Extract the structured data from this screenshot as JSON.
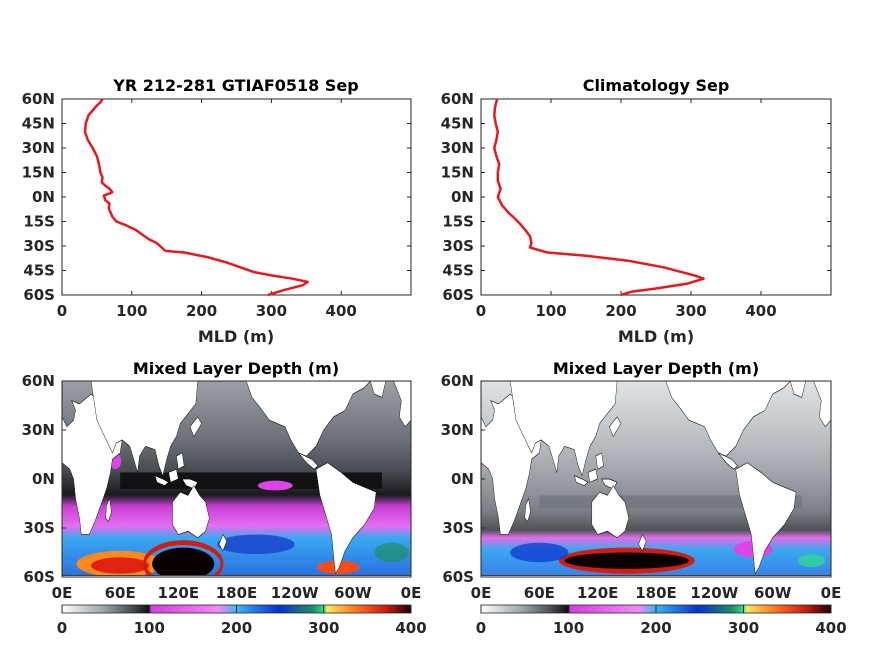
{
  "chart_data": [
    {
      "type": "line",
      "title": "YR 212-281 GTIAF0518 Sep",
      "xlabel": "MLD (m)",
      "ylabel": "",
      "xlim": [
        0,
        500
      ],
      "ylim": [
        -60,
        60
      ],
      "x_ticks": [
        "0",
        "100",
        "200",
        "300",
        "400"
      ],
      "y_ticks": [
        "60N",
        "45N",
        "30N",
        "15N",
        "0N",
        "15S",
        "30S",
        "45S",
        "60S"
      ],
      "series": [
        {
          "color": "#e8191c",
          "points": [
            [
              58,
              60
            ],
            [
              55,
              58
            ],
            [
              50,
              56
            ],
            [
              44,
              53
            ],
            [
              38,
              50
            ],
            [
              34,
              45
            ],
            [
              33,
              40
            ],
            [
              37,
              35
            ],
            [
              44,
              30
            ],
            [
              50,
              25
            ],
            [
              53,
              20
            ],
            [
              55,
              15
            ],
            [
              58,
              12
            ],
            [
              57,
              9
            ],
            [
              62,
              7
            ],
            [
              68,
              5
            ],
            [
              72,
              3
            ],
            [
              67,
              2
            ],
            [
              60,
              1
            ],
            [
              62,
              -2
            ],
            [
              68,
              -4
            ],
            [
              67,
              -7
            ],
            [
              69,
              -9
            ],
            [
              72,
              -12
            ],
            [
              78,
              -15
            ],
            [
              90,
              -17
            ],
            [
              105,
              -20
            ],
            [
              115,
              -23
            ],
            [
              125,
              -26
            ],
            [
              135,
              -28
            ],
            [
              143,
              -31
            ],
            [
              148,
              -33
            ],
            [
              175,
              -34
            ],
            [
              210,
              -37
            ],
            [
              235,
              -40
            ],
            [
              255,
              -43
            ],
            [
              275,
              -46
            ],
            [
              300,
              -48
            ],
            [
              330,
              -50
            ],
            [
              352,
              -52
            ],
            [
              345,
              -54
            ],
            [
              318,
              -57
            ],
            [
              295,
              -60
            ]
          ]
        }
      ]
    },
    {
      "type": "line",
      "title": "Climatology Sep",
      "xlabel": "MLD (m)",
      "ylabel": "",
      "xlim": [
        0,
        500
      ],
      "ylim": [
        -60,
        60
      ],
      "x_ticks": [
        "0",
        "100",
        "200",
        "300",
        "400"
      ],
      "y_ticks": [
        "60N",
        "45N",
        "30N",
        "15N",
        "0N",
        "15S",
        "30S",
        "45S",
        "60S"
      ],
      "series": [
        {
          "color": "#e8191c",
          "points": [
            [
              23,
              60
            ],
            [
              20,
              55
            ],
            [
              19,
              50
            ],
            [
              21,
              45
            ],
            [
              24,
              40
            ],
            [
              22,
              35
            ],
            [
              19,
              30
            ],
            [
              22,
              25
            ],
            [
              26,
              20
            ],
            [
              24,
              15
            ],
            [
              24,
              10
            ],
            [
              28,
              5
            ],
            [
              24,
              0
            ],
            [
              30,
              -5
            ],
            [
              40,
              -10
            ],
            [
              48,
              -13
            ],
            [
              57,
              -17
            ],
            [
              63,
              -20
            ],
            [
              70,
              -24
            ],
            [
              72,
              -28
            ],
            [
              70,
              -31
            ],
            [
              95,
              -34
            ],
            [
              150,
              -36
            ],
            [
              210,
              -39
            ],
            [
              260,
              -43
            ],
            [
              305,
              -48
            ],
            [
              318,
              -50
            ],
            [
              295,
              -53
            ],
            [
              250,
              -56
            ],
            [
              215,
              -58
            ],
            [
              200,
              -60
            ]
          ]
        }
      ]
    },
    {
      "type": "heatmap",
      "title": "Mixed Layer Depth (m)",
      "y_ticks": [
        "60N",
        "30N",
        "0N",
        "30S",
        "60S"
      ],
      "x_ticks": [
        "0E",
        "60E",
        "120E",
        "180E",
        "120W",
        "60W",
        "0E"
      ],
      "colorbar_ticks": [
        "0",
        "100",
        "200",
        "300",
        "400"
      ],
      "range": [
        0,
        400
      ]
    },
    {
      "type": "heatmap",
      "title": "Mixed Layer Depth (m)",
      "y_ticks": [
        "60N",
        "30N",
        "0N",
        "30S",
        "60S"
      ],
      "x_ticks": [
        "0E",
        "60E",
        "120E",
        "180E",
        "120W",
        "60W",
        "0E"
      ],
      "colorbar_ticks": [
        "0",
        "100",
        "200",
        "300",
        "400"
      ],
      "range": [
        0,
        400
      ]
    }
  ],
  "colormap": [
    "#ffffff",
    "#9aa4a8",
    "#4a4f55",
    "#0b0b0b",
    "#e044e8",
    "#f17cf5",
    "#37b6f2",
    "#0a30cc",
    "#1e8f66",
    "#2ee08c",
    "#ffd21c",
    "#ff6a1c",
    "#d11d12",
    "#1a0000"
  ]
}
